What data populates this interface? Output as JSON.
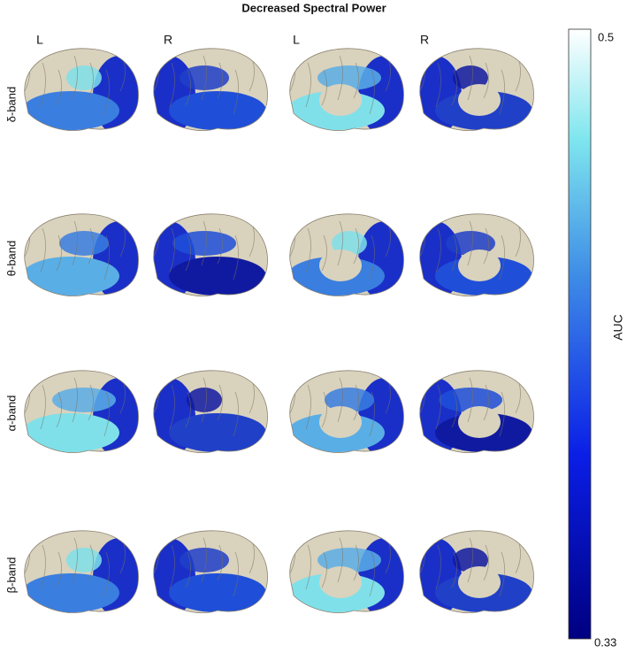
{
  "title": "Decreased Spectral Power",
  "hemispheres": [
    "L",
    "R",
    "L",
    "R"
  ],
  "bands": [
    "δ-band",
    "θ-band",
    "α-band",
    "β-band"
  ],
  "colorbar": {
    "label": "AUC",
    "max": "0.5",
    "min": "0.33"
  }
}
